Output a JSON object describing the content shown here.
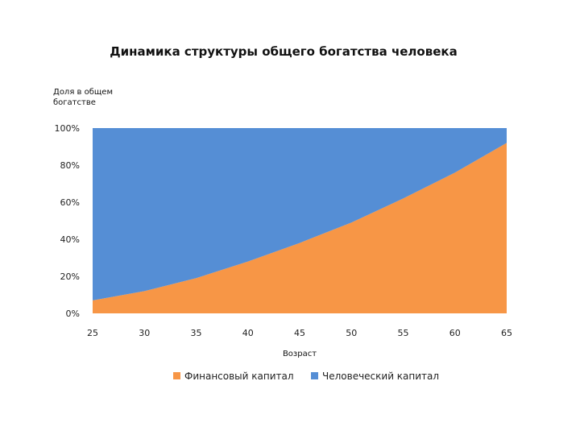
{
  "chart_data": {
    "type": "area",
    "stacked": true,
    "percent": true,
    "title": "Динамика структуры общего богатства человека",
    "ylabel_lines": [
      "Доля в общем",
      "богатстве"
    ],
    "xlabel": "Возраст",
    "x": [
      25,
      30,
      35,
      40,
      45,
      50,
      55,
      60,
      65
    ],
    "series": [
      {
        "name": "Финансовый капитал",
        "color": "#f79646",
        "values": [
          7,
          12,
          19,
          28,
          38,
          49,
          62,
          76,
          92
        ]
      },
      {
        "name": "Человеческий капитал",
        "color": "#558ed5",
        "values": [
          93,
          88,
          81,
          72,
          62,
          51,
          38,
          24,
          8
        ]
      }
    ],
    "xlim": [
      25,
      65
    ],
    "ylim": [
      0,
      100
    ],
    "xticks": [
      "25",
      "30",
      "35",
      "40",
      "45",
      "50",
      "55",
      "60",
      "65"
    ],
    "yticks": [
      "0%",
      "20%",
      "40%",
      "60%",
      "80%",
      "100%"
    ],
    "grid": false,
    "legend_position": "bottom"
  }
}
